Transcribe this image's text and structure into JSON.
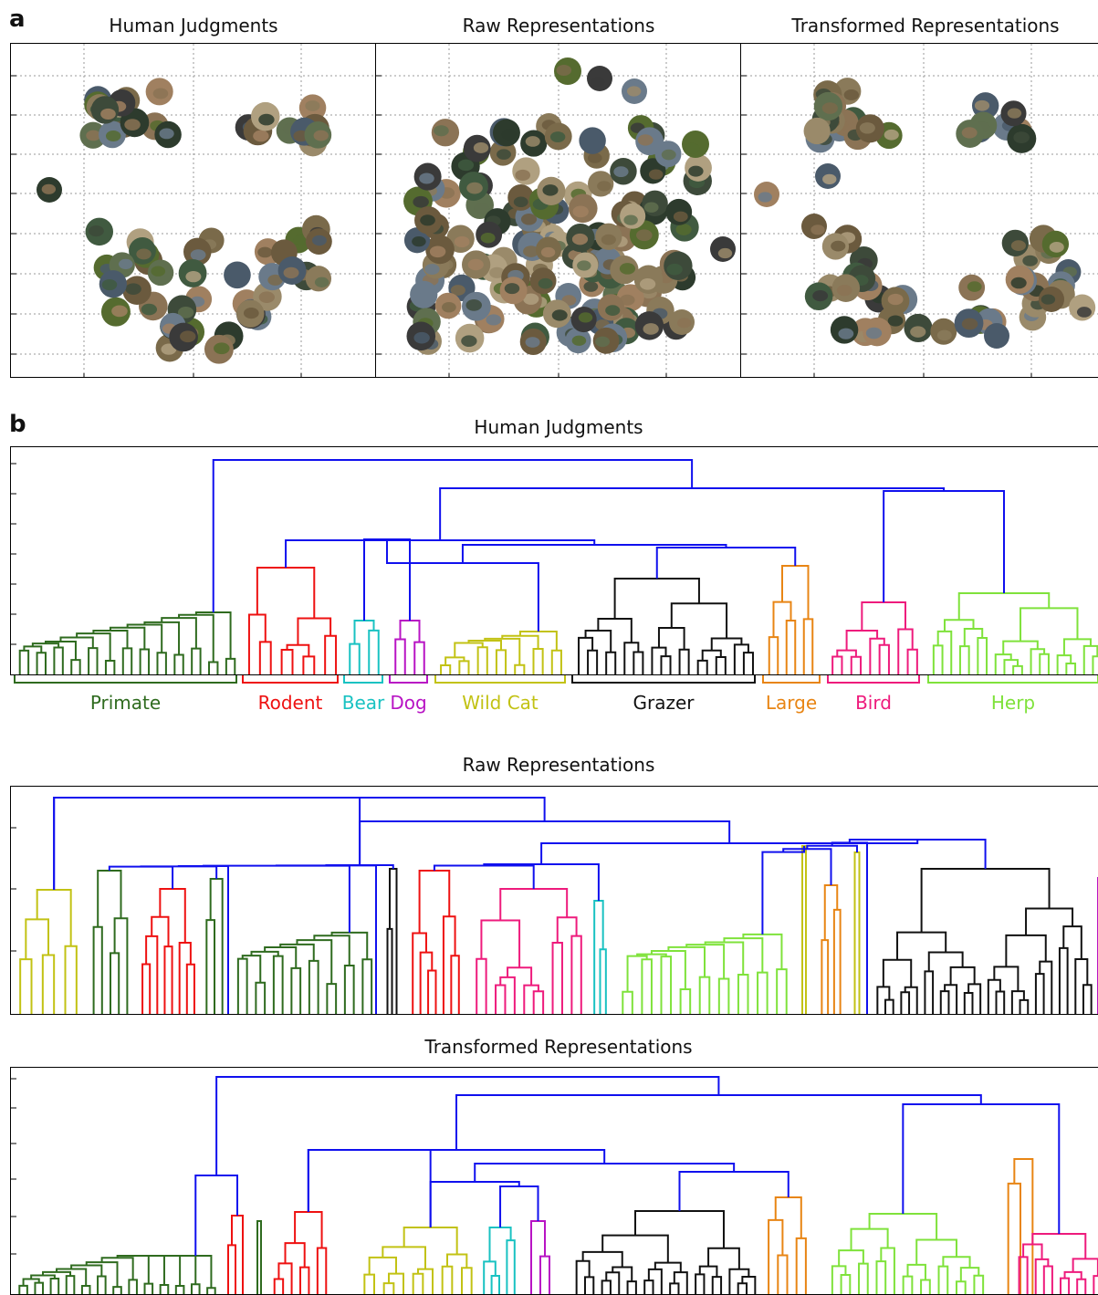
{
  "panel_a": {
    "letter": "a",
    "titles": [
      "Human Judgments",
      "Raw Representations",
      "Transformed Representations"
    ],
    "image_counts": [
      60,
      150,
      60
    ]
  },
  "panel_b": {
    "letter": "b",
    "dendrograms": [
      {
        "title": "Human Judgments",
        "labels": [
          {
            "text": "Primate",
            "color": "#2f6b1f"
          },
          {
            "text": "Rodent",
            "color": "#ee1111"
          },
          {
            "text": "Bear",
            "color": "#19c2c2"
          },
          {
            "text": "Dog",
            "color": "#b814c4"
          },
          {
            "text": "Wild Cat",
            "color": "#c2c214"
          },
          {
            "text": "Grazer",
            "color": "#111111"
          },
          {
            "text": "Large",
            "color": "#e88514"
          },
          {
            "text": "Bird",
            "color": "#ee1b7c"
          },
          {
            "text": "Herp",
            "color": "#7fe23b"
          }
        ]
      },
      {
        "title": "Raw Representations"
      },
      {
        "title": "Transformed Representations"
      }
    ]
  },
  "colors": {
    "root_links": "#1010ee",
    "primate": "#2f6b1f",
    "rodent": "#ee1111",
    "bear": "#19c2c2",
    "dog": "#b814c4",
    "wild_cat": "#c2c214",
    "grazer": "#111111",
    "large": "#e88514",
    "bird": "#ee1b7c",
    "herp": "#7fe23b"
  }
}
